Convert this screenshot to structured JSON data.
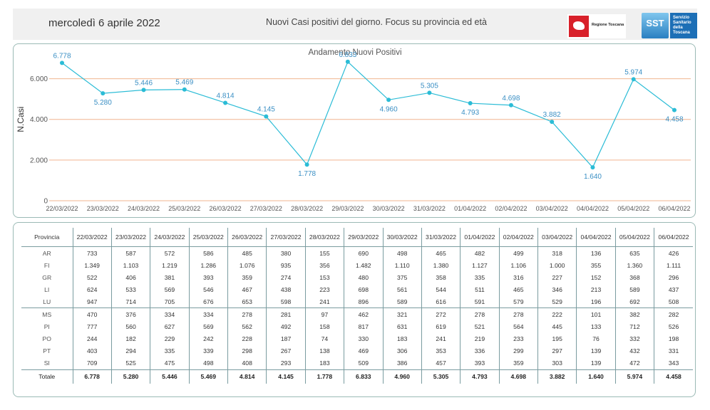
{
  "header": {
    "date": "mercoledì 6 aprile 2022",
    "title": "Nuovi Casi positivi del giorno. Focus su provincia ed età",
    "logo_rt_text": "Regione Toscana",
    "logo_sst_text": "SST",
    "logo_sst_sub": "Servizio Sanitario della Toscana"
  },
  "chart_data": {
    "type": "line",
    "title": "Andamento Nuovi Positivi",
    "ylabel": "N.Casi",
    "xlabel": "",
    "ylim": [
      0,
      7000
    ],
    "yticks": [
      0,
      2000,
      4000,
      6000
    ],
    "ytick_labels": [
      "0",
      "2.000",
      "4.000",
      "6.000"
    ],
    "grid": true,
    "line_color": "#2bbcd6",
    "grid_color": "#f0b48f",
    "categories": [
      "22/03/2022",
      "23/03/2022",
      "24/03/2022",
      "25/03/2022",
      "26/03/2022",
      "27/03/2022",
      "28/03/2022",
      "29/03/2022",
      "30/03/2022",
      "31/03/2022",
      "01/04/2022",
      "02/04/2022",
      "03/04/2022",
      "04/04/2022",
      "05/04/2022",
      "06/04/2022"
    ],
    "values": [
      6778,
      5280,
      5446,
      5469,
      4814,
      4145,
      1778,
      6833,
      4960,
      5305,
      4793,
      4698,
      3882,
      1640,
      5974,
      4458
    ],
    "value_labels": [
      "6.778",
      "5.280",
      "5.446",
      "5.469",
      "4.814",
      "4.145",
      "1.778",
      "6.833",
      "4.960",
      "5.305",
      "4.793",
      "4.698",
      "3.882",
      "1.640",
      "5.974",
      "4.458"
    ]
  },
  "table": {
    "header_first": "Provincia",
    "dates": [
      "22/03/2022",
      "23/03/2022",
      "24/03/2022",
      "25/03/2022",
      "26/03/2022",
      "27/03/2022",
      "28/03/2022",
      "29/03/2022",
      "30/03/2022",
      "31/03/2022",
      "01/04/2022",
      "02/04/2022",
      "03/04/2022",
      "04/04/2022",
      "05/04/2022",
      "06/04/2022"
    ],
    "rows": [
      {
        "name": "AR",
        "values": [
          "733",
          "587",
          "572",
          "586",
          "485",
          "380",
          "155",
          "690",
          "498",
          "465",
          "482",
          "499",
          "318",
          "136",
          "635",
          "426"
        ]
      },
      {
        "name": "FI",
        "values": [
          "1.349",
          "1.103",
          "1.219",
          "1.286",
          "1.076",
          "935",
          "356",
          "1.482",
          "1.110",
          "1.380",
          "1.127",
          "1.106",
          "1.000",
          "355",
          "1.360",
          "1.111"
        ]
      },
      {
        "name": "GR",
        "values": [
          "522",
          "406",
          "381",
          "393",
          "359",
          "274",
          "153",
          "480",
          "375",
          "358",
          "335",
          "316",
          "227",
          "152",
          "368",
          "296"
        ]
      },
      {
        "name": "LI",
        "values": [
          "624",
          "533",
          "569",
          "546",
          "467",
          "438",
          "223",
          "698",
          "561",
          "544",
          "511",
          "465",
          "346",
          "213",
          "589",
          "437"
        ]
      },
      {
        "name": "LU",
        "values": [
          "947",
          "714",
          "705",
          "676",
          "653",
          "598",
          "241",
          "896",
          "589",
          "616",
          "591",
          "579",
          "529",
          "196",
          "692",
          "508"
        ]
      },
      {
        "name": "MS",
        "values": [
          "470",
          "376",
          "334",
          "334",
          "278",
          "281",
          "97",
          "462",
          "321",
          "272",
          "278",
          "278",
          "222",
          "101",
          "382",
          "282"
        ]
      },
      {
        "name": "PI",
        "values": [
          "777",
          "560",
          "627",
          "569",
          "562",
          "492",
          "158",
          "817",
          "631",
          "619",
          "521",
          "564",
          "445",
          "133",
          "712",
          "526"
        ]
      },
      {
        "name": "PO",
        "values": [
          "244",
          "182",
          "229",
          "242",
          "228",
          "187",
          "74",
          "330",
          "183",
          "241",
          "219",
          "233",
          "195",
          "76",
          "332",
          "198"
        ]
      },
      {
        "name": "PT",
        "values": [
          "403",
          "294",
          "335",
          "339",
          "298",
          "267",
          "138",
          "469",
          "306",
          "353",
          "336",
          "299",
          "297",
          "139",
          "432",
          "331"
        ]
      },
      {
        "name": "SI",
        "values": [
          "709",
          "525",
          "475",
          "498",
          "408",
          "293",
          "183",
          "509",
          "386",
          "457",
          "393",
          "359",
          "303",
          "139",
          "472",
          "343"
        ]
      }
    ],
    "total": {
      "name": "Totale",
      "values": [
        "6.778",
        "5.280",
        "5.446",
        "5.469",
        "4.814",
        "4.145",
        "1.778",
        "6.833",
        "4.960",
        "5.305",
        "4.793",
        "4.698",
        "3.882",
        "1.640",
        "5.974",
        "4.458"
      ]
    }
  }
}
